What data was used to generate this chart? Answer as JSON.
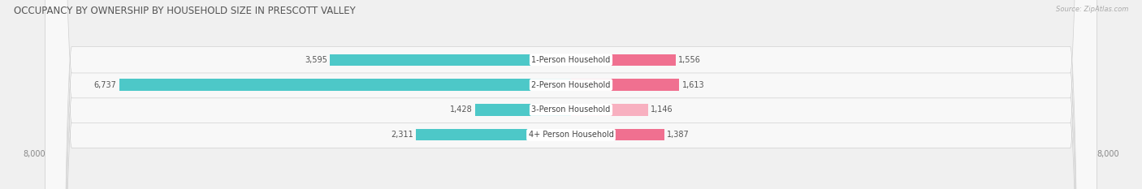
{
  "title": "OCCUPANCY BY OWNERSHIP BY HOUSEHOLD SIZE IN PRESCOTT VALLEY",
  "source": "Source: ZipAtlas.com",
  "categories": [
    "1-Person Household",
    "2-Person Household",
    "3-Person Household",
    "4+ Person Household"
  ],
  "owner_values": [
    3595,
    6737,
    1428,
    2311
  ],
  "renter_values": [
    1556,
    1613,
    1146,
    1387
  ],
  "owner_color": "#4DC8C8",
  "renter_color": "#F07090",
  "renter_color_light": "#F8B0C0",
  "max_val": 8000,
  "bg_color": "#f0f0f0",
  "row_bg_color": "#e8e8e8",
  "pill_color": "#f8f8f8",
  "title_fontsize": 8.5,
  "label_fontsize": 7,
  "value_fontsize": 7,
  "tick_fontsize": 7,
  "bar_height": 0.62
}
